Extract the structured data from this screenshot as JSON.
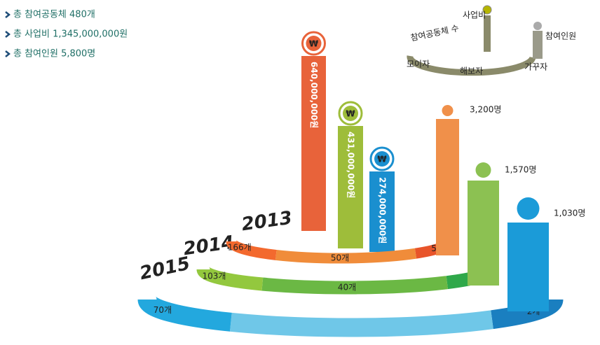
{
  "summary": [
    "총 참여공동체 480개",
    "총 사업비 1,345,000,000원",
    "총 참여인원 5,800명"
  ],
  "legend": {
    "budget": "사업비",
    "communities": "참여공동체 수",
    "people": "참여인원",
    "types": [
      "모이자",
      "해보자",
      "가꾸자"
    ]
  },
  "years": [
    {
      "year": "2013",
      "budget": "640,000,000원",
      "people": "3,200명",
      "groups": {
        "left": "166개",
        "middle": "50개",
        "right": "5개"
      }
    },
    {
      "year": "2014",
      "budget": "431,000,000원",
      "people": "1,570명",
      "groups": {
        "left": "103개",
        "middle": "40개",
        "right": "4개"
      }
    },
    {
      "year": "2015",
      "budget": "274,000,000원",
      "people": "1,030명",
      "groups": {
        "left": "70개",
        "right": "2개"
      }
    }
  ]
}
